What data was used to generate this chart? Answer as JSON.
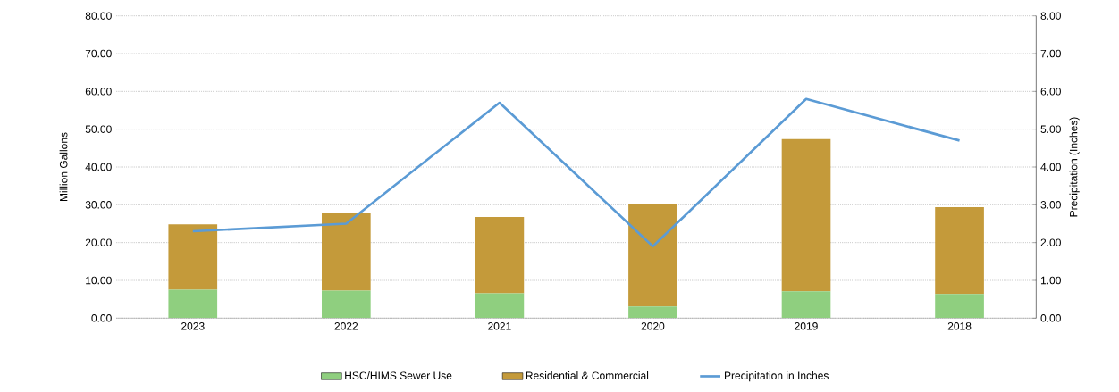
{
  "chart_data": {
    "type": "bar",
    "stacked": true,
    "categories": [
      "2023",
      "2022",
      "2021",
      "2020",
      "2019",
      "2018"
    ],
    "series": [
      {
        "name": "HSC/HIMS Sewer Use",
        "color": "#8fcf7f",
        "values": [
          7.5,
          7.3,
          6.6,
          3.1,
          7.1,
          6.4
        ]
      },
      {
        "name": "Residential & Commercial",
        "color": "#c49a3a",
        "values": [
          17.3,
          20.5,
          20.2,
          27.0,
          40.3,
          23.0
        ]
      },
      {
        "name": "Precipitation in Inches",
        "type": "line",
        "axis": "y2",
        "color": "#5b9bd5",
        "values": [
          2.3,
          2.5,
          5.7,
          1.9,
          5.8,
          4.7
        ]
      }
    ],
    "ylabel": "Million Gallons",
    "y2label": "Precipitation (Inches)",
    "ylim": [
      0,
      80
    ],
    "yticks": [
      {
        "value": 0,
        "label": "0.00"
      },
      {
        "value": 10,
        "label": "10.00"
      },
      {
        "value": 20,
        "label": "20.00"
      },
      {
        "value": 30,
        "label": "30.00"
      },
      {
        "value": 40,
        "label": "40.00"
      },
      {
        "value": 50,
        "label": "50.00"
      },
      {
        "value": 60,
        "label": "60.00"
      },
      {
        "value": 70,
        "label": "70.00"
      },
      {
        "value": 80,
        "label": "80.00"
      }
    ],
    "y2lim": [
      0,
      8
    ],
    "y2ticks": [
      {
        "value": 0,
        "label": "0.00"
      },
      {
        "value": 1,
        "label": "1.00"
      },
      {
        "value": 2,
        "label": "2.00"
      },
      {
        "value": 3,
        "label": "3.00"
      },
      {
        "value": 4,
        "label": "4.00"
      },
      {
        "value": 5,
        "label": "5.00"
      },
      {
        "value": 6,
        "label": "6.00"
      },
      {
        "value": 7,
        "label": "7.00"
      },
      {
        "value": 8,
        "label": "8.00"
      }
    ],
    "grid": "y",
    "legend": "bottom"
  }
}
